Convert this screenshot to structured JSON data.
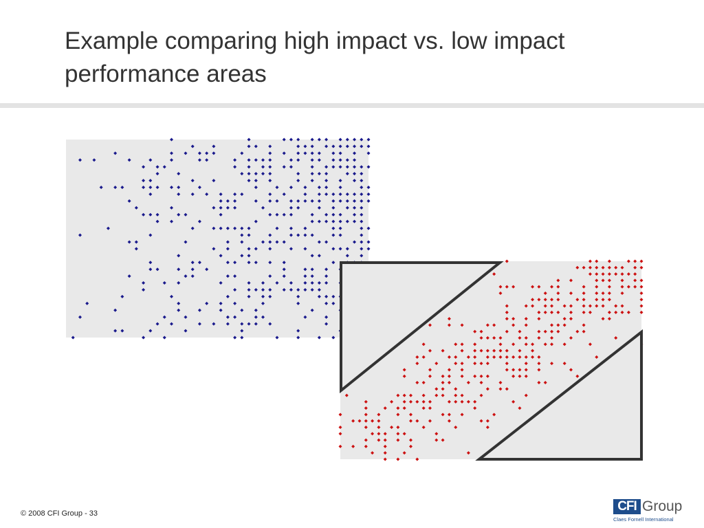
{
  "slide": {
    "title": "Example comparing high impact vs. low impact performance areas"
  },
  "footer": {
    "copyright": "© 2008 CFI Group - 33"
  },
  "logo": {
    "box_text": "CFI",
    "word_text": "Group",
    "tagline": "Claes Fornell International"
  },
  "colors": {
    "blue_points": "#1a1a8c",
    "red_points": "#cc1111",
    "plot_background": "#e9e9e9",
    "overlay_stroke": "#333333",
    "logo_blue": "#1e4d8c"
  },
  "chart_data": [
    {
      "type": "scatter",
      "name": "",
      "color": "#1a1a8c",
      "grid": false,
      "xlim": [
        0,
        1
      ],
      "ylim": [
        0,
        1
      ],
      "note_density": "points concentrated toward upper-right; spread across full area"
    },
    {
      "type": "scatter",
      "name": "",
      "color": "#cc1111",
      "grid": false,
      "xlim": [
        0,
        1
      ],
      "ylim": [
        0,
        1
      ],
      "overlay": "two triangles highlight off-diagonal regions (upper-left and lower-right)",
      "note_density": "points concentrated along diagonal from lower-left to upper-right"
    }
  ]
}
